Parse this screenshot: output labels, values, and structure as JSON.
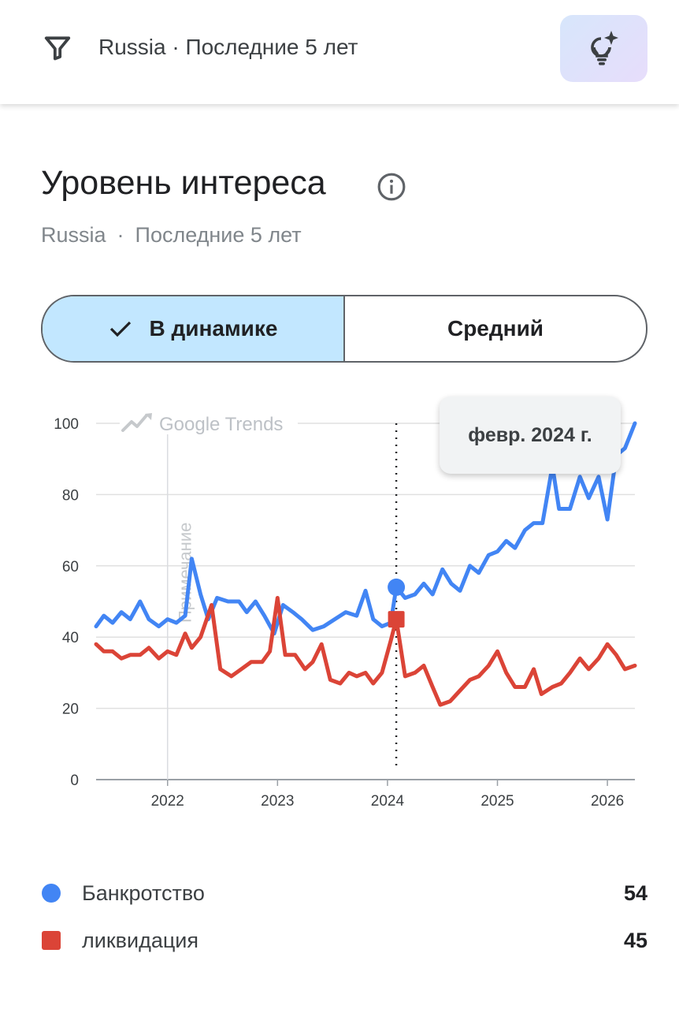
{
  "header": {
    "filter_text": "Russia · Последние 5 лет",
    "filter_icon": "filter-icon",
    "ai_icon": "lightbulb-sparkle-icon"
  },
  "section": {
    "title": "Уровень интереса",
    "info_icon": "info-icon",
    "subtitle_region": "Russia",
    "subtitle_sep": "·",
    "subtitle_period": "Последние 5 лет"
  },
  "toggle": {
    "active_label": "В динамике",
    "inactive_label": "Средний"
  },
  "tooltip": {
    "date": "февр. 2024 г."
  },
  "chart_data": {
    "type": "line",
    "watermark": "Google Trends",
    "annotation": "Примечание",
    "x_tick_labels": [
      "2022",
      "2023",
      "2024",
      "2025",
      "2026"
    ],
    "y_tick_labels": [
      "100",
      "80",
      "60",
      "40",
      "20",
      "0"
    ],
    "ylim": [
      0,
      100
    ],
    "xlim": [
      2021.35,
      2026.25
    ],
    "grid": true,
    "highlight_x": 2024.08,
    "series": [
      {
        "name": "Банкротство",
        "color": "#4285f4",
        "marker": "circle",
        "highlight_value": 54,
        "points": [
          [
            2021.35,
            43
          ],
          [
            2021.42,
            46
          ],
          [
            2021.5,
            44
          ],
          [
            2021.58,
            47
          ],
          [
            2021.66,
            45
          ],
          [
            2021.75,
            50
          ],
          [
            2021.83,
            45
          ],
          [
            2021.92,
            43
          ],
          [
            2022.0,
            45
          ],
          [
            2022.08,
            44
          ],
          [
            2022.16,
            46
          ],
          [
            2022.22,
            62
          ],
          [
            2022.3,
            52
          ],
          [
            2022.37,
            45
          ],
          [
            2022.45,
            51
          ],
          [
            2022.55,
            50
          ],
          [
            2022.65,
            50
          ],
          [
            2022.72,
            47
          ],
          [
            2022.8,
            50
          ],
          [
            2022.88,
            46
          ],
          [
            2022.97,
            41
          ],
          [
            2023.05,
            49
          ],
          [
            2023.14,
            47
          ],
          [
            2023.22,
            45
          ],
          [
            2023.32,
            42
          ],
          [
            2023.42,
            43
          ],
          [
            2023.52,
            45
          ],
          [
            2023.62,
            47
          ],
          [
            2023.72,
            46
          ],
          [
            2023.8,
            53
          ],
          [
            2023.87,
            45
          ],
          [
            2023.95,
            43
          ],
          [
            2024.03,
            44
          ],
          [
            2024.08,
            54
          ],
          [
            2024.16,
            51
          ],
          [
            2024.25,
            52
          ],
          [
            2024.33,
            55
          ],
          [
            2024.41,
            52
          ],
          [
            2024.5,
            59
          ],
          [
            2024.58,
            55
          ],
          [
            2024.66,
            53
          ],
          [
            2024.75,
            60
          ],
          [
            2024.83,
            58
          ],
          [
            2024.92,
            63
          ],
          [
            2025.0,
            64
          ],
          [
            2025.08,
            67
          ],
          [
            2025.16,
            65
          ],
          [
            2025.25,
            70
          ],
          [
            2025.33,
            72
          ],
          [
            2025.41,
            72
          ],
          [
            2025.5,
            88
          ],
          [
            2025.56,
            76
          ],
          [
            2025.66,
            76
          ],
          [
            2025.75,
            85
          ],
          [
            2025.83,
            79
          ],
          [
            2025.92,
            85
          ],
          [
            2026.0,
            73
          ],
          [
            2026.08,
            91
          ],
          [
            2026.16,
            93
          ],
          [
            2026.25,
            100
          ]
        ]
      },
      {
        "name": "ликвидация",
        "color": "#db4437",
        "marker": "square",
        "highlight_value": 45,
        "points": [
          [
            2021.35,
            38
          ],
          [
            2021.42,
            36
          ],
          [
            2021.5,
            36
          ],
          [
            2021.58,
            34
          ],
          [
            2021.66,
            35
          ],
          [
            2021.75,
            35
          ],
          [
            2021.83,
            37
          ],
          [
            2021.92,
            34
          ],
          [
            2022.0,
            36
          ],
          [
            2022.08,
            35
          ],
          [
            2022.16,
            41
          ],
          [
            2022.22,
            37
          ],
          [
            2022.3,
            40
          ],
          [
            2022.4,
            49
          ],
          [
            2022.48,
            31
          ],
          [
            2022.58,
            29
          ],
          [
            2022.67,
            31
          ],
          [
            2022.76,
            33
          ],
          [
            2022.86,
            33
          ],
          [
            2022.93,
            36
          ],
          [
            2023.0,
            51
          ],
          [
            2023.07,
            35
          ],
          [
            2023.16,
            35
          ],
          [
            2023.25,
            31
          ],
          [
            2023.32,
            33
          ],
          [
            2023.4,
            38
          ],
          [
            2023.48,
            28
          ],
          [
            2023.57,
            27
          ],
          [
            2023.65,
            30
          ],
          [
            2023.72,
            29
          ],
          [
            2023.8,
            30
          ],
          [
            2023.87,
            27
          ],
          [
            2023.95,
            30
          ],
          [
            2024.03,
            39
          ],
          [
            2024.08,
            45
          ],
          [
            2024.16,
            29
          ],
          [
            2024.25,
            30
          ],
          [
            2024.33,
            32
          ],
          [
            2024.41,
            26
          ],
          [
            2024.48,
            21
          ],
          [
            2024.57,
            22
          ],
          [
            2024.66,
            25
          ],
          [
            2024.75,
            28
          ],
          [
            2024.83,
            29
          ],
          [
            2024.92,
            32
          ],
          [
            2025.0,
            36
          ],
          [
            2025.08,
            30
          ],
          [
            2025.16,
            26
          ],
          [
            2025.25,
            26
          ],
          [
            2025.33,
            31
          ],
          [
            2025.4,
            24
          ],
          [
            2025.5,
            26
          ],
          [
            2025.58,
            27
          ],
          [
            2025.66,
            30
          ],
          [
            2025.75,
            34
          ],
          [
            2025.83,
            31
          ],
          [
            2025.92,
            34
          ],
          [
            2026.0,
            38
          ],
          [
            2026.08,
            35
          ],
          [
            2026.16,
            31
          ],
          [
            2026.25,
            32
          ]
        ]
      }
    ]
  },
  "legend": [
    {
      "name": "Банкротство",
      "value": "54",
      "color": "#4285f4"
    },
    {
      "name": "ликвидация",
      "value": "45",
      "color": "#db4437"
    }
  ]
}
